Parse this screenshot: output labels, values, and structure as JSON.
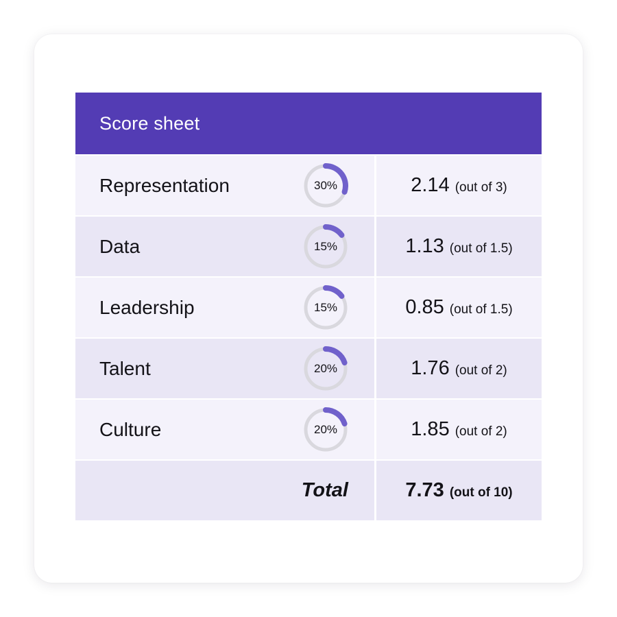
{
  "card": {
    "title": "Score sheet"
  },
  "colors": {
    "header_bg": "#533CB4",
    "row_light": "#F4F2FB",
    "row_dark": "#E9E6F5",
    "arc": "#7061CB",
    "track": "#D9D8DE",
    "text": "#131217",
    "header_text": "#FFFFFF"
  },
  "rows": [
    {
      "label": "Representation",
      "weight_pct": 30,
      "weight_label": "30%",
      "score": "2.14",
      "out_of": "(out of 3)"
    },
    {
      "label": "Data",
      "weight_pct": 15,
      "weight_label": "15%",
      "score": "1.13",
      "out_of": "(out of 1.5)"
    },
    {
      "label": "Leadership",
      "weight_pct": 15,
      "weight_label": "15%",
      "score": "0.85",
      "out_of": "(out of 1.5)"
    },
    {
      "label": "Talent",
      "weight_pct": 20,
      "weight_label": "20%",
      "score": "1.76",
      "out_of": "(out of 2)"
    },
    {
      "label": "Culture",
      "weight_pct": 20,
      "weight_label": "20%",
      "score": "1.85",
      "out_of": "(out of 2)"
    }
  ],
  "total": {
    "label": "Total",
    "score": "7.73",
    "out_of": "(out of 10)"
  }
}
